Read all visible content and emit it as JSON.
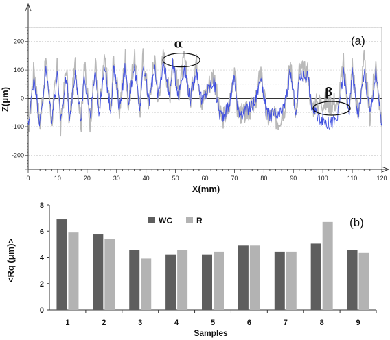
{
  "chart_data": [
    {
      "type": "line",
      "panel_label": "(a)",
      "xlabel": "X(mm)",
      "ylabel": "Z(μm)",
      "xlim": [
        0,
        120
      ],
      "ylim": [
        -250,
        250
      ],
      "xticks": [
        "0",
        "10",
        "20",
        "30",
        "40",
        "50",
        "60",
        "70",
        "80",
        "90",
        "100",
        "110",
        "120"
      ],
      "yticks": [
        "200",
        "100",
        "0",
        "-100",
        "-200"
      ],
      "grid": true,
      "annotations": [
        {
          "label": "α",
          "x": 52,
          "y": 135
        },
        {
          "label": "β",
          "x": 103,
          "y": -35
        }
      ],
      "series": [
        {
          "color": "#b9b9b9",
          "x": [
            0,
            2,
            4,
            6,
            8,
            10,
            11,
            13,
            14,
            16,
            18,
            19,
            21,
            23,
            24,
            26,
            28,
            29,
            31,
            33,
            34,
            36,
            38,
            39,
            41,
            43,
            44,
            46,
            48,
            49,
            51,
            53,
            55,
            57,
            59,
            61,
            63,
            65,
            66,
            68,
            70,
            71,
            73,
            75,
            77,
            79,
            81,
            83,
            85,
            87,
            89,
            91,
            92,
            95,
            96,
            98,
            100,
            102,
            104,
            105,
            107,
            109,
            110,
            112,
            114,
            116,
            118,
            120
          ],
          "y": [
            -120,
            110,
            -100,
            130,
            -80,
            120,
            -110,
            115,
            -90,
            120,
            -85,
            125,
            -80,
            130,
            -60,
            135,
            -50,
            140,
            -40,
            145,
            -30,
            150,
            -40,
            155,
            -20,
            150,
            -10,
            160,
            0,
            150,
            20,
            140,
            -10,
            135,
            -20,
            40,
            90,
            -60,
            -70,
            -40,
            110,
            -40,
            -60,
            -40,
            -20,
            100,
            -70,
            -60,
            -80,
            -30,
            120,
            -70,
            95,
            95,
            -30,
            -20,
            -10,
            -20,
            -10,
            -40,
            120,
            -60,
            120,
            -70,
            130,
            -60,
            120,
            -100
          ],
          "y_noise_amplitude": 40
        },
        {
          "color": "#3f4fe0",
          "x": [
            0,
            2,
            4,
            6,
            8,
            10,
            11,
            13,
            14,
            16,
            18,
            19,
            21,
            23,
            24,
            26,
            28,
            29,
            31,
            33,
            34,
            36,
            38,
            39,
            41,
            43,
            44,
            46,
            48,
            49,
            51,
            53,
            55,
            57,
            59,
            61,
            63,
            65,
            66,
            68,
            70,
            71,
            73,
            75,
            77,
            79,
            81,
            83,
            85,
            87,
            89,
            91,
            92,
            95,
            96,
            98,
            100,
            102,
            104,
            105,
            107,
            109,
            110,
            112,
            114,
            116,
            118,
            120
          ],
          "y": [
            -100,
            80,
            -90,
            100,
            -70,
            90,
            -95,
            85,
            -80,
            90,
            -75,
            95,
            -70,
            100,
            -55,
            105,
            -45,
            110,
            -35,
            115,
            -25,
            120,
            -35,
            125,
            -15,
            120,
            -5,
            130,
            5,
            120,
            15,
            110,
            -5,
            105,
            -15,
            30,
            60,
            -55,
            -60,
            -35,
            80,
            -35,
            -55,
            -35,
            -15,
            80,
            -60,
            -55,
            -70,
            -25,
            90,
            -60,
            80,
            80,
            -25,
            -60,
            -75,
            -90,
            -80,
            -70,
            90,
            -50,
            90,
            -60,
            95,
            -55,
            90,
            -90
          ],
          "y_noise_amplitude": 25
        }
      ]
    },
    {
      "type": "bar",
      "panel_label": "(b)",
      "xlabel": "Samples",
      "ylabel": "<Rq (μm)>",
      "ylim": [
        0,
        8
      ],
      "yticks": [
        "0",
        "2",
        "4",
        "6",
        "8"
      ],
      "categories": [
        "1",
        "2",
        "3",
        "4",
        "5",
        "6",
        "7",
        "8",
        "9"
      ],
      "legend_position": "top-center",
      "series": [
        {
          "name": "WC",
          "color": "#5e5e5e",
          "values": [
            6.9,
            5.75,
            4.55,
            4.2,
            4.2,
            4.9,
            4.45,
            5.05,
            4.6
          ]
        },
        {
          "name": "R",
          "color": "#b3b3b3",
          "values": [
            5.9,
            5.4,
            3.9,
            4.55,
            4.45,
            4.9,
            4.45,
            6.7,
            4.35
          ]
        }
      ]
    }
  ]
}
